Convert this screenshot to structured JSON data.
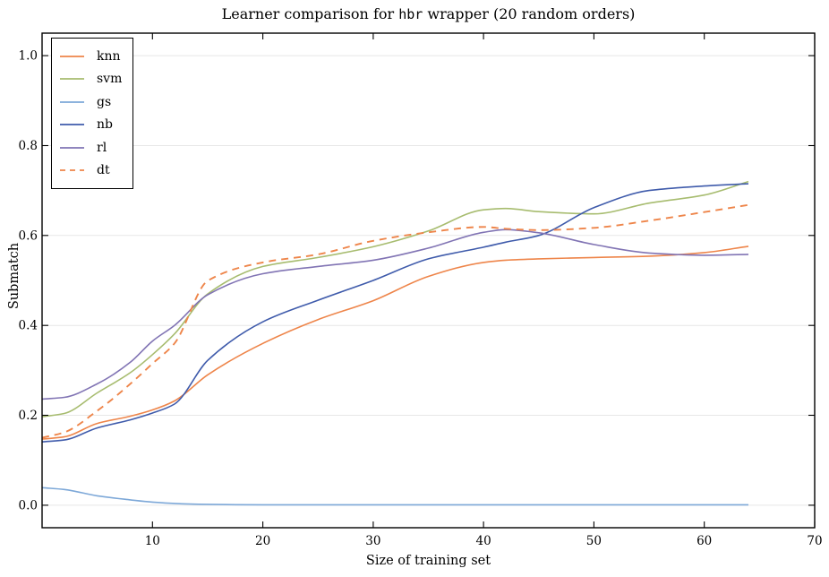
{
  "figure": {
    "title_parts": {
      "prefix": "Learner comparison for ",
      "mono": "hbr",
      "suffix": " wrapper (20 random orders)"
    }
  },
  "chart_data": {
    "type": "line",
    "title": "Learner comparison for hbr wrapper (20 random orders)",
    "xlabel": "Size of training set",
    "ylabel": "Submatch",
    "xlim": [
      0,
      70
    ],
    "ylim": [
      -0.05,
      1.05
    ],
    "xticks": [
      10,
      20,
      30,
      40,
      50,
      60,
      70
    ],
    "yticks": [
      0.0,
      0.2,
      0.4,
      0.6,
      0.8,
      1.0
    ],
    "grid": "horizontal",
    "legend_position": "upper left",
    "x": [
      0,
      2,
      5,
      8,
      10,
      12,
      15,
      20,
      25,
      30,
      35,
      40,
      42,
      45,
      50,
      55,
      60,
      64
    ],
    "series": [
      {
        "name": "knn",
        "color": "#EE854A",
        "style": "solid",
        "values": [
          0.147,
          0.152,
          0.182,
          0.198,
          0.212,
          0.232,
          0.29,
          0.36,
          0.413,
          0.455,
          0.509,
          0.54,
          0.545,
          0.548,
          0.551,
          0.554,
          0.562,
          0.576
        ]
      },
      {
        "name": "svm",
        "color": "#A7BC6F",
        "style": "solid",
        "values": [
          0.197,
          0.204,
          0.25,
          0.295,
          0.335,
          0.381,
          0.47,
          0.531,
          0.551,
          0.575,
          0.61,
          0.657,
          0.66,
          0.653,
          0.648,
          0.672,
          0.69,
          0.72
        ]
      },
      {
        "name": "gs",
        "color": "#7DA8D8",
        "style": "solid",
        "values": [
          0.039,
          0.035,
          0.021,
          0.012,
          0.007,
          0.004,
          0.002,
          0.001,
          0.001,
          0.001,
          0.001,
          0.001,
          0.001,
          0.001,
          0.001,
          0.001,
          0.001,
          0.001
        ]
      },
      {
        "name": "nb",
        "color": "#3F5BAB",
        "style": "solid",
        "values": [
          0.141,
          0.145,
          0.172,
          0.19,
          0.205,
          0.225,
          0.322,
          0.408,
          0.456,
          0.5,
          0.548,
          0.574,
          0.585,
          0.6,
          0.662,
          0.7,
          0.71,
          0.715
        ]
      },
      {
        "name": "rl",
        "color": "#8174B4",
        "style": "solid",
        "values": [
          0.236,
          0.24,
          0.27,
          0.318,
          0.365,
          0.4,
          0.468,
          0.515,
          0.531,
          0.545,
          0.572,
          0.607,
          0.613,
          0.606,
          0.58,
          0.561,
          0.556,
          0.558
        ]
      },
      {
        "name": "dt",
        "color": "#EE854A",
        "style": "dashed",
        "values": [
          0.15,
          0.162,
          0.21,
          0.27,
          0.315,
          0.36,
          0.499,
          0.54,
          0.558,
          0.588,
          0.607,
          0.619,
          0.615,
          0.612,
          0.617,
          0.633,
          0.652,
          0.668
        ]
      }
    ],
    "colors": {
      "grid": "#E7E7E7",
      "axis": "#000000",
      "background": "#FFFFFF"
    }
  }
}
